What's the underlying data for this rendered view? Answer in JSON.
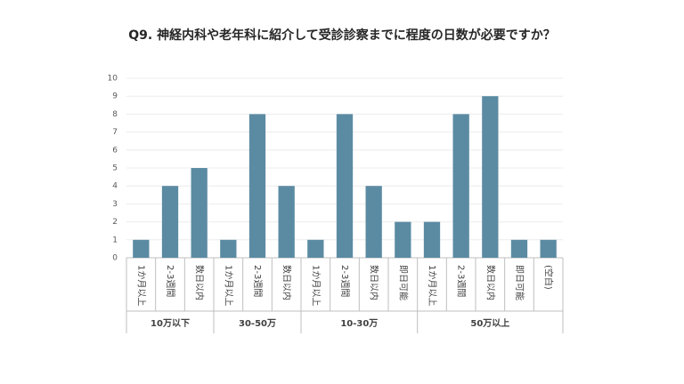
{
  "chart_data": {
    "type": "bar",
    "title": "Q9. 神経内科や老年科に紹介して受診診察までに程度の日数が必要ですか？",
    "color": "#5b8ba3",
    "ylim": [
      0,
      10
    ],
    "yticks": [
      0,
      1,
      2,
      3,
      4,
      5,
      6,
      7,
      8,
      9,
      10
    ],
    "grid": true,
    "groups": [
      {
        "name": "10万以下",
        "categories": [
          "1か月以上",
          "2-3週間",
          "数日以内"
        ],
        "values": [
          1,
          4,
          5
        ]
      },
      {
        "name": "30-50万",
        "categories": [
          "1か月以上",
          "2-3週間",
          "数日以内"
        ],
        "values": [
          1,
          8,
          4
        ]
      },
      {
        "name": "10-30万",
        "categories": [
          "1か月以上",
          "2-3週間",
          "数日以内",
          "即日可能"
        ],
        "values": [
          1,
          8,
          4,
          2
        ]
      },
      {
        "name": "50万以上",
        "categories": [
          "1か月以上",
          "2-3週間",
          "数日以内",
          "即日可能",
          "(空白)"
        ],
        "values": [
          2,
          8,
          9,
          1,
          1
        ]
      }
    ]
  }
}
